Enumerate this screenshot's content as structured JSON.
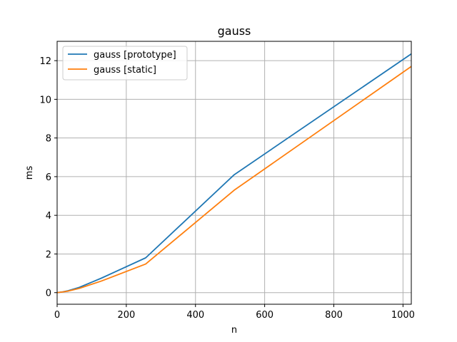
{
  "chart_data": {
    "type": "line",
    "title": "gauss",
    "xlabel": "n",
    "ylabel": "ms",
    "xlim": [
      0,
      1024
    ],
    "ylim": [
      -0.6,
      13.0
    ],
    "xticks": [
      0,
      200,
      400,
      600,
      800,
      1000
    ],
    "yticks": [
      0,
      2,
      4,
      6,
      8,
      10,
      12
    ],
    "grid": true,
    "legend_position": "top-left",
    "series": [
      {
        "name": "gauss [prototype]",
        "color": "#1f77b4",
        "x": [
          1,
          2,
          4,
          8,
          16,
          32,
          64,
          128,
          256,
          512,
          1024
        ],
        "y": [
          0.0,
          0.005,
          0.01,
          0.02,
          0.04,
          0.1,
          0.27,
          0.75,
          1.8,
          6.1,
          12.35
        ]
      },
      {
        "name": "gauss [static]",
        "color": "#ff7f0e",
        "x": [
          1,
          2,
          4,
          8,
          16,
          32,
          64,
          128,
          256,
          512,
          1024
        ],
        "y": [
          0.0,
          0.004,
          0.008,
          0.016,
          0.035,
          0.08,
          0.22,
          0.6,
          1.48,
          5.3,
          11.7
        ]
      }
    ]
  }
}
